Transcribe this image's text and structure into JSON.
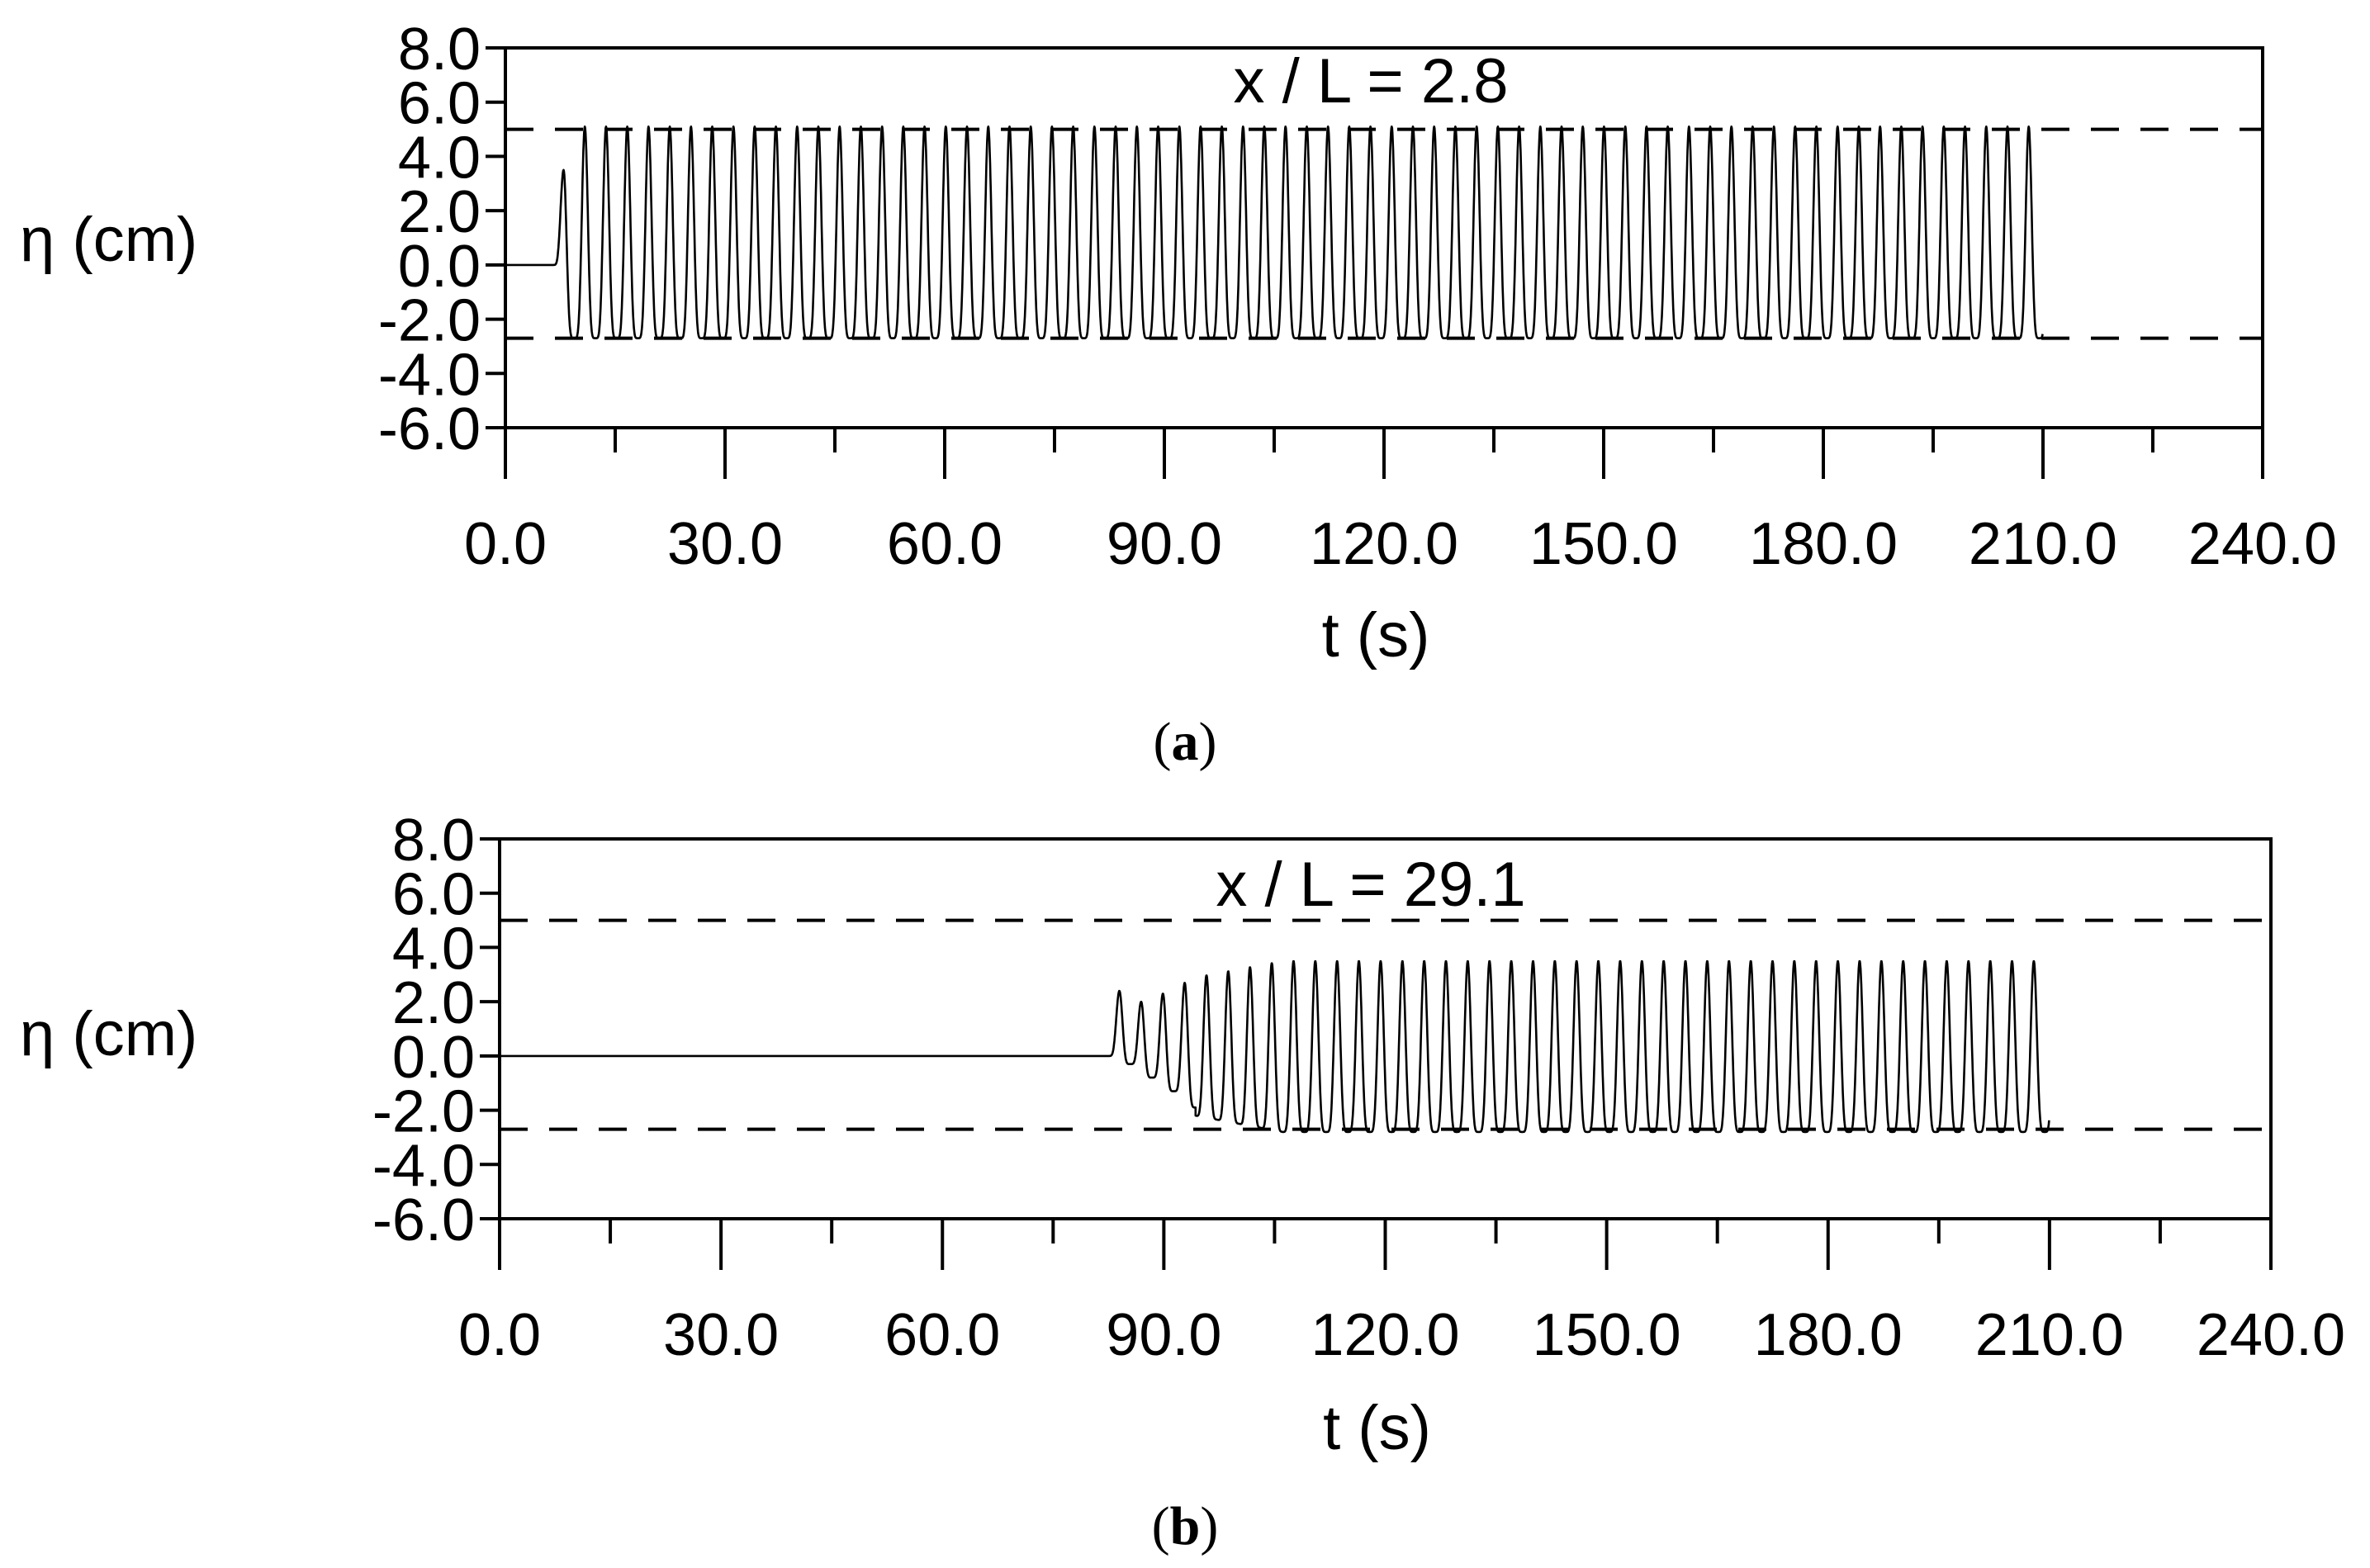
{
  "chart_data": [
    {
      "type": "line",
      "panel_label": "a",
      "annotation": "x / L = 2.8",
      "xlabel": "t (s)",
      "ylabel": "η (cm)",
      "xlim": [
        0,
        240
      ],
      "ylim": [
        -6,
        8
      ],
      "x_ticks": [
        "0.0",
        "30.0",
        "60.0",
        "90.0",
        "120.0",
        "150.0",
        "180.0",
        "210.0",
        "240.0"
      ],
      "y_ticks": [
        "8.0",
        "6.0",
        "4.0",
        "2.0",
        "0.0",
        "-2.0",
        "-4.0",
        "-6.0"
      ],
      "reference_lines": [
        5.0,
        -2.7
      ],
      "series": [
        {
          "wave_start_s": 6.5,
          "wave_end_s": 210.0,
          "wave_period_s": 2.9,
          "first_peak_cm": 3.5,
          "crest_cm": 5.1,
          "trough_cm": -2.7,
          "values_description": "steady periodic wave train"
        }
      ]
    },
    {
      "type": "line",
      "panel_label": "b",
      "annotation": "x / L = 29.1",
      "xlabel": "t (s)",
      "ylabel": "η (cm)",
      "xlim": [
        0,
        240
      ],
      "ylim": [
        -6,
        8
      ],
      "x_ticks": [
        "0.0",
        "30.0",
        "60.0",
        "90.0",
        "120.0",
        "150.0",
        "180.0",
        "210.0",
        "240.0"
      ],
      "y_ticks": [
        "8.0",
        "6.0",
        "4.0",
        "2.0",
        "0.0",
        "-2.0",
        "-4.0",
        "-6.0"
      ],
      "reference_lines": [
        5.0,
        -2.7
      ],
      "series": [
        {
          "wave_start_s": 82.5,
          "wave_end_s": 210.0,
          "wave_period_s": 2.95,
          "lead_crests_cm": [
            2.4,
            2.0,
            2.3,
            2.7
          ],
          "crest_cm": 3.5,
          "trough_cm": -2.8,
          "values_description": "leading wave group arriving near 85 s then periodic wave train"
        }
      ]
    }
  ]
}
